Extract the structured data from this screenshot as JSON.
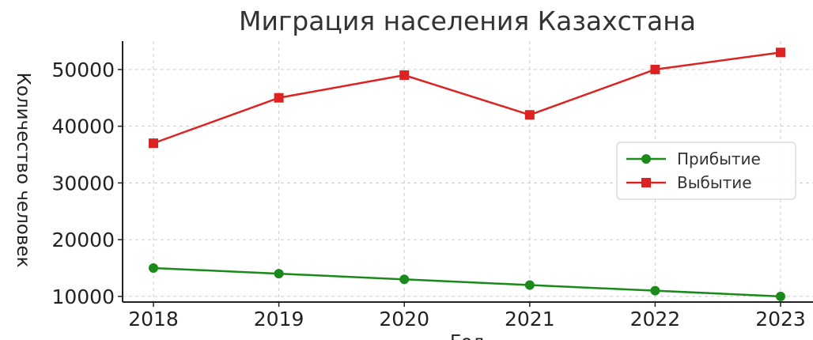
{
  "chart_data": {
    "type": "line",
    "title": "Миграция населения Казахстана",
    "xlabel": "Год",
    "ylabel": "Количество человек",
    "x": [
      "2018",
      "2019",
      "2020",
      "2021",
      "2022",
      "2023"
    ],
    "yticks": [
      "10000",
      "20000",
      "30000",
      "40000",
      "50000"
    ],
    "ylim": [
      9000,
      55000
    ],
    "grid": true,
    "legend_position": "right",
    "series": [
      {
        "name": "Прибытие",
        "values": [
          15000,
          14000,
          13000,
          12000,
          11000,
          10000
        ],
        "color": "#1a8a1a",
        "marker": "circle"
      },
      {
        "name": "Выбытие",
        "values": [
          37000,
          45000,
          49000,
          42000,
          50000,
          53000
        ],
        "color": "#dd2222",
        "marker": "square"
      }
    ]
  }
}
